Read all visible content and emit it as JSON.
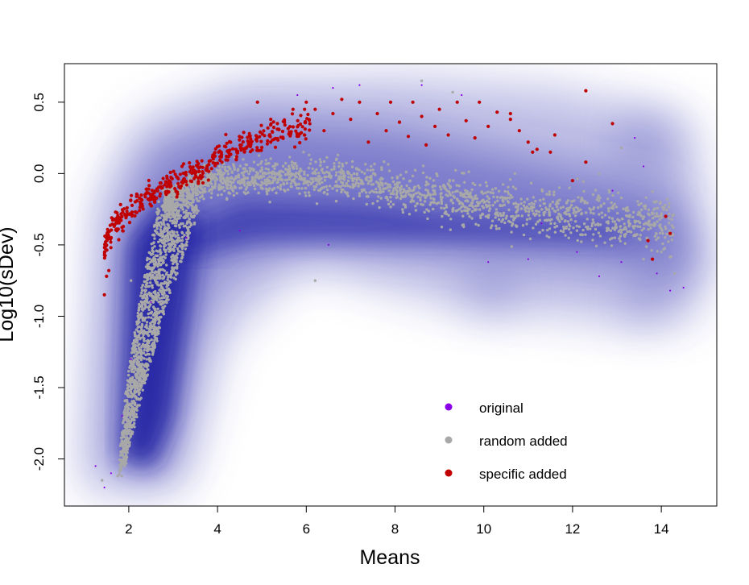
{
  "chart_data": {
    "type": "scatter",
    "title": "",
    "xlabel": "Means",
    "ylabel": "Log10(sDev)",
    "xlim": [
      0.55,
      15.25
    ],
    "ylim": [
      -2.33,
      0.77
    ],
    "x_ticks": [
      2,
      4,
      6,
      8,
      10,
      12,
      14
    ],
    "x_tick_labels": [
      "2",
      "4",
      "6",
      "8",
      "10",
      "12",
      "14"
    ],
    "y_ticks": [
      0.5,
      0.0,
      -0.5,
      -1.0,
      -1.5,
      -2.0
    ],
    "y_tick_labels": [
      "0.5",
      "0.0",
      "-0.5",
      "-1.0",
      "-1.5",
      "-2.0"
    ],
    "grid": false,
    "legend_position": "bottom-right inside",
    "background": "smoothed density of original points (blue)",
    "density_color": "#1a1aa0",
    "series": [
      {
        "name": "original",
        "color": "#8a00e6",
        "points": [
          [
            1.25,
            -2.05
          ],
          [
            1.45,
            -2.2
          ],
          [
            1.6,
            -2.1
          ],
          [
            1.85,
            -1.7
          ],
          [
            2.05,
            -1.3
          ],
          [
            2.5,
            -0.9
          ],
          [
            3.3,
            -0.45
          ],
          [
            4.5,
            -0.4
          ],
          [
            6.5,
            -0.5
          ],
          [
            7.2,
            0.62
          ],
          [
            8.6,
            0.62
          ],
          [
            10.1,
            -0.62
          ],
          [
            11.0,
            -0.6
          ],
          [
            11.3,
            -0.35
          ],
          [
            12.1,
            -0.55
          ],
          [
            12.9,
            -0.12
          ],
          [
            13.4,
            0.25
          ],
          [
            13.6,
            0.05
          ],
          [
            13.9,
            -0.7
          ],
          [
            14.2,
            -0.82
          ],
          [
            14.5,
            -0.8
          ],
          [
            13.1,
            -0.62
          ],
          [
            12.6,
            -0.72
          ],
          [
            9.5,
            0.55
          ],
          [
            6.6,
            0.6
          ],
          [
            5.8,
            0.55
          ]
        ]
      },
      {
        "name": "random added",
        "color": "#a8a8a8",
        "trunk": {
          "x_start": 1.85,
          "x_end": 3.25,
          "y_start": -2.1,
          "y_end": -0.1,
          "count": 1500
        },
        "band": {
          "x_range": [
            2.8,
            14.3
          ],
          "center_y": [
            -0.05,
            -0.35
          ],
          "spread": 0.15,
          "count": 1800
        },
        "outliers": [
          [
            1.4,
            -2.15
          ],
          [
            1.75,
            -2.12
          ],
          [
            2.05,
            -0.75
          ],
          [
            6.2,
            -0.75
          ],
          [
            8.6,
            0.65
          ],
          [
            9.3,
            0.57
          ],
          [
            10.7,
            0.0
          ],
          [
            11.6,
            -0.35
          ],
          [
            12.1,
            -0.4
          ],
          [
            12.6,
            0.0
          ],
          [
            13.1,
            0.18
          ],
          [
            13.6,
            -0.6
          ],
          [
            14.0,
            -0.55
          ],
          [
            14.3,
            -0.7
          ]
        ]
      },
      {
        "name": "specific added",
        "color": "#c00000",
        "cloud": {
          "x_range": [
            1.45,
            6.1
          ],
          "curve_y": [
            -0.55,
            0.25
          ],
          "count": 420
        },
        "scattered": [
          [
            6.2,
            0.45
          ],
          [
            6.4,
            0.3
          ],
          [
            6.6,
            0.42
          ],
          [
            6.8,
            0.52
          ],
          [
            7.0,
            0.38
          ],
          [
            7.2,
            0.5
          ],
          [
            7.4,
            0.22
          ],
          [
            7.6,
            0.42
          ],
          [
            7.8,
            0.3
          ],
          [
            7.9,
            0.5
          ],
          [
            8.1,
            0.36
          ],
          [
            8.3,
            0.26
          ],
          [
            8.4,
            0.5
          ],
          [
            8.6,
            0.4
          ],
          [
            8.7,
            0.2
          ],
          [
            8.9,
            0.33
          ],
          [
            9.0,
            0.45
          ],
          [
            9.2,
            0.27
          ],
          [
            9.4,
            0.5
          ],
          [
            9.6,
            0.37
          ],
          [
            9.8,
            0.25
          ],
          [
            9.9,
            0.5
          ],
          [
            10.1,
            0.33
          ],
          [
            10.3,
            0.43
          ],
          [
            10.6,
            0.42
          ],
          [
            10.6,
            0.38
          ],
          [
            10.8,
            0.3
          ],
          [
            11.0,
            0.22
          ],
          [
            11.2,
            0.17
          ],
          [
            11.1,
            0.15
          ],
          [
            11.5,
            0.15
          ],
          [
            11.6,
            0.27
          ],
          [
            12.0,
            -0.05
          ],
          [
            12.3,
            0.08
          ],
          [
            12.3,
            0.58
          ],
          [
            12.9,
            0.35
          ],
          [
            13.7,
            -0.47
          ],
          [
            13.8,
            -0.6
          ],
          [
            14.1,
            -0.3
          ],
          [
            14.2,
            -0.42
          ],
          [
            1.45,
            -0.85
          ],
          [
            1.5,
            -0.72
          ],
          [
            1.55,
            -0.68
          ],
          [
            3.2,
            0.05
          ],
          [
            4.9,
            0.5
          ],
          [
            5.7,
            0.45
          ],
          [
            6.0,
            0.5
          ]
        ]
      }
    ]
  }
}
